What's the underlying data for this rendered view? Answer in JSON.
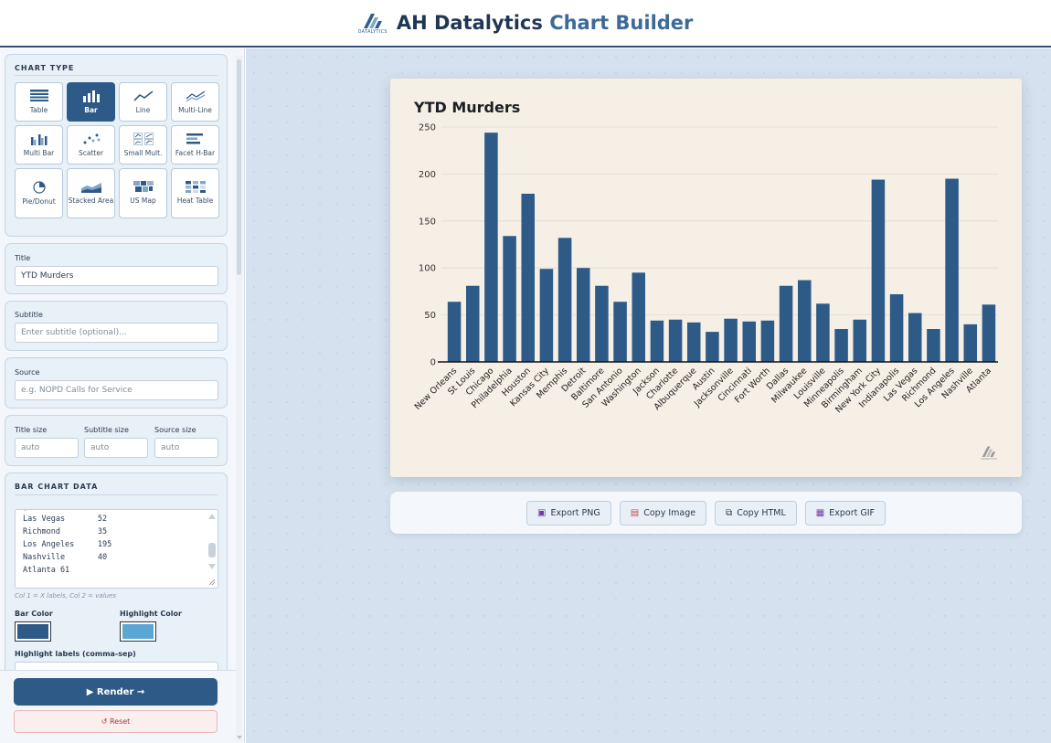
{
  "header": {
    "logo_sub": "DATALYTICS",
    "title_main": "AH Datalytics",
    "title_sub": "Chart Builder"
  },
  "chart_type_panel": {
    "title": "CHART TYPE",
    "types": [
      {
        "label": "Table",
        "icon": "table-icon"
      },
      {
        "label": "Bar",
        "icon": "bar-chart-icon",
        "active": true
      },
      {
        "label": "Line",
        "icon": "line-chart-icon"
      },
      {
        "label": "Multi-Line",
        "icon": "multi-line-chart-icon"
      },
      {
        "label": "Multi Bar",
        "icon": "multi-bar-chart-icon"
      },
      {
        "label": "Scatter",
        "icon": "scatter-chart-icon"
      },
      {
        "label": "Small Mult.",
        "icon": "small-multiples-icon"
      },
      {
        "label": "Facet H-Bar",
        "icon": "facet-hbar-icon"
      },
      {
        "label": "Pie/Donut",
        "icon": "pie-chart-icon"
      },
      {
        "label": "Stacked Area",
        "icon": "stacked-area-icon"
      },
      {
        "label": "US Map",
        "icon": "us-map-icon"
      },
      {
        "label": "Heat Table",
        "icon": "heat-table-icon"
      }
    ]
  },
  "title_field": {
    "label": "Title",
    "value": "YTD Murders"
  },
  "subtitle_field": {
    "label": "Subtitle",
    "placeholder": "Enter subtitle (optional)..."
  },
  "source_field": {
    "label": "Source",
    "placeholder": "e.g. NOPD Calls for Service"
  },
  "sizes": {
    "title_label": "Title size",
    "subtitle_label": "Subtitle size",
    "source_label": "Source size",
    "title_value": "auto",
    "subtitle_value": "auto",
    "source_value": "auto"
  },
  "bar_data_panel": {
    "title": "BAR CHART DATA",
    "lines": [
      "Las Vegas       52",
      "Richmond        35",
      "Los Angeles     195",
      "Nashville       40",
      "Atlanta 61"
    ],
    "hint": "Col 1 = X labels, Col 2 = values",
    "bar_color_label": "Bar Color",
    "highlight_color_label": "Highlight Color",
    "bar_color": "#2e5a87",
    "highlight_color": "#5ba7d4",
    "highlight_labels_label": "Highlight labels (comma-sep)"
  },
  "actions": {
    "render_label": "▶ Render →",
    "reset_label": "↺ Reset"
  },
  "export": {
    "png": "Export PNG",
    "copy_image": "Copy Image",
    "copy_html": "Copy HTML",
    "gif": "Export GIF"
  },
  "chart_data": {
    "type": "bar",
    "title": "YTD Murders",
    "categories": [
      "New Orleans",
      "St Louis",
      "Chicago",
      "Philadelphia",
      "Houston",
      "Kansas City",
      "Memphis",
      "Detroit",
      "Baltimore",
      "San Antonio",
      "Washington",
      "Jackson",
      "Charlotte",
      "Albuquerque",
      "Austin",
      "Jacksonville",
      "Cincinnati",
      "Fort Worth",
      "Dallas",
      "Milwaukee",
      "Louisville",
      "Minneapolis",
      "Birmingham",
      "New York City",
      "Indianapolis",
      "Las Vegas",
      "Richmond",
      "Los Angeles",
      "Nashville",
      "Atlanta"
    ],
    "values": [
      64,
      81,
      244,
      134,
      179,
      99,
      132,
      100,
      81,
      64,
      95,
      44,
      45,
      42,
      32,
      46,
      43,
      44,
      81,
      87,
      62,
      35,
      45,
      194,
      72,
      52,
      35,
      195,
      40,
      61
    ],
    "ylim": [
      0,
      250
    ],
    "yticks": [
      0,
      50,
      100,
      150,
      200,
      250
    ],
    "bar_color": "#2e5a87",
    "grid": true
  }
}
